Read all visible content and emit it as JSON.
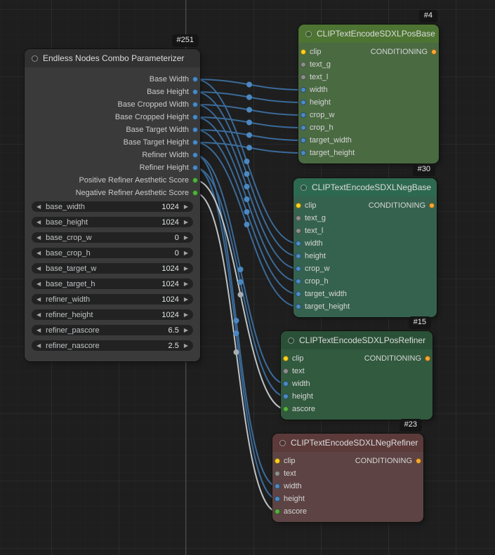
{
  "icons": {
    "decrement": "◀",
    "increment": "▶"
  },
  "colors": {
    "canvas_bg": "#1e1e1e",
    "link_int": "#3c6f9f",
    "link_float": "#c6cbce",
    "port_int": "#4d8ac4",
    "port_float": "#55b13e",
    "port_clip": "#ffd21e",
    "port_conditioning": "#f7a832",
    "port_text": "#8e8e8e",
    "pos_base_header": "#4d7432",
    "neg_base_header": "#2d6950",
    "pos_refiner_header": "#2a5137",
    "neg_refiner_header": "#5c3a3a"
  },
  "nodes": {
    "parameterizer": {
      "badge": "#251",
      "title": "Endless Nodes Combo Parameterizer",
      "outputs": [
        {
          "label": "Base Width"
        },
        {
          "label": "Base Height"
        },
        {
          "label": "Base Cropped Width"
        },
        {
          "label": "Base Cropped Height"
        },
        {
          "label": "Base Target Width"
        },
        {
          "label": "Base Target Height"
        },
        {
          "label": "Refiner Width"
        },
        {
          "label": "Refiner Height"
        },
        {
          "label": "Positive Refiner Aesthetic Score"
        },
        {
          "label": "Negative Refiner Aesthetic Score"
        }
      ],
      "widgets": [
        {
          "label": "base_width",
          "value": "1024"
        },
        {
          "label": "base_height",
          "value": "1024"
        },
        {
          "label": "base_crop_w",
          "value": "0"
        },
        {
          "label": "base_crop_h",
          "value": "0"
        },
        {
          "label": "base_target_w",
          "value": "1024"
        },
        {
          "label": "base_target_h",
          "value": "1024"
        },
        {
          "label": "refiner_width",
          "value": "1024"
        },
        {
          "label": "refiner_height",
          "value": "1024"
        },
        {
          "label": "refiner_pascore",
          "value": "6.5"
        },
        {
          "label": "refiner_nascore",
          "value": "2.5"
        }
      ]
    },
    "pos_base": {
      "badge": "#4",
      "title": "CLIPTextEncodeSDXLPosBase",
      "output": "CONDITIONING",
      "inputs": [
        {
          "label": "clip"
        },
        {
          "label": "text_g"
        },
        {
          "label": "text_l"
        },
        {
          "label": "width"
        },
        {
          "label": "height"
        },
        {
          "label": "crop_w"
        },
        {
          "label": "crop_h"
        },
        {
          "label": "target_width"
        },
        {
          "label": "target_height"
        }
      ]
    },
    "neg_base": {
      "badge": "#30",
      "title": "CLIPTextEncodeSDXLNegBase",
      "output": "CONDITIONING",
      "inputs": [
        {
          "label": "clip"
        },
        {
          "label": "text_g"
        },
        {
          "label": "text_l"
        },
        {
          "label": "width"
        },
        {
          "label": "height"
        },
        {
          "label": "crop_w"
        },
        {
          "label": "crop_h"
        },
        {
          "label": "target_width"
        },
        {
          "label": "target_height"
        }
      ]
    },
    "pos_refiner": {
      "badge": "#15",
      "title": "CLIPTextEncodeSDXLPosRefiner",
      "output": "CONDITIONING",
      "inputs": [
        {
          "label": "clip"
        },
        {
          "label": "text"
        },
        {
          "label": "width"
        },
        {
          "label": "height"
        },
        {
          "label": "ascore"
        }
      ]
    },
    "neg_refiner": {
      "badge": "#23",
      "title": "CLIPTextEncodeSDXLNegRefiner",
      "output": "CONDITIONING",
      "inputs": [
        {
          "label": "clip"
        },
        {
          "label": "text"
        },
        {
          "label": "width"
        },
        {
          "label": "height"
        },
        {
          "label": "ascore"
        }
      ]
    }
  },
  "links": [
    {
      "from": "p251_out_base_width",
      "to": "n4_in_width",
      "type": "int"
    },
    {
      "from": "p251_out_base_height",
      "to": "n4_in_height",
      "type": "int"
    },
    {
      "from": "p251_out_base_cropped_width",
      "to": "n4_in_crop_w",
      "type": "int"
    },
    {
      "from": "p251_out_base_cropped_height",
      "to": "n4_in_crop_h",
      "type": "int"
    },
    {
      "from": "p251_out_base_target_width",
      "to": "n4_in_target_width",
      "type": "int"
    },
    {
      "from": "p251_out_base_target_height",
      "to": "n4_in_target_height",
      "type": "int"
    },
    {
      "from": "p251_out_base_width",
      "to": "n30_in_width",
      "type": "int"
    },
    {
      "from": "p251_out_base_height",
      "to": "n30_in_height",
      "type": "int"
    },
    {
      "from": "p251_out_base_cropped_width",
      "to": "n30_in_crop_w",
      "type": "int"
    },
    {
      "from": "p251_out_base_cropped_height",
      "to": "n30_in_crop_h",
      "type": "int"
    },
    {
      "from": "p251_out_base_target_width",
      "to": "n30_in_target_width",
      "type": "int"
    },
    {
      "from": "p251_out_base_target_height",
      "to": "n30_in_target_height",
      "type": "int"
    },
    {
      "from": "p251_out_refiner_width",
      "to": "n15_in_width",
      "type": "int"
    },
    {
      "from": "p251_out_refiner_height",
      "to": "n15_in_height",
      "type": "int"
    },
    {
      "from": "p251_out_refiner_width",
      "to": "n23_in_width",
      "type": "int"
    },
    {
      "from": "p251_out_refiner_height",
      "to": "n23_in_height",
      "type": "int"
    },
    {
      "from": "p251_out_pascore",
      "to": "n15_in_ascore",
      "type": "float"
    },
    {
      "from": "p251_out_nascore",
      "to": "n23_in_ascore",
      "type": "float"
    }
  ]
}
